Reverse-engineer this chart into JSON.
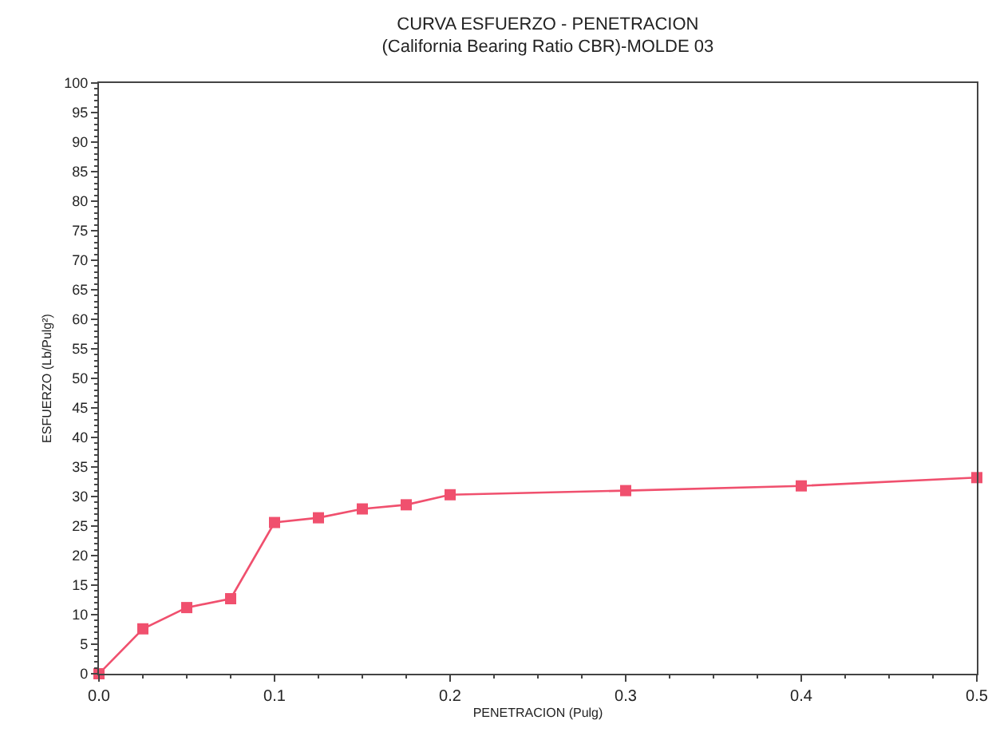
{
  "chart_data": {
    "type": "line",
    "title": "CURVA ESFUERZO - PENETRACION",
    "subtitle": "(California Bearing Ratio CBR)-MOLDE 03",
    "xlabel": "PENETRACION (Pulg)",
    "ylabel": "ESFUERZO (Lb/Pulg²)",
    "x": [
      0,
      0.025,
      0.05,
      0.075,
      0.1,
      0.125,
      0.15,
      0.175,
      0.2,
      0.3,
      0.4,
      0.5
    ],
    "series": [
      {
        "color": "#f0506e",
        "values": [
          0,
          7.6,
          11.2,
          12.7,
          25.6,
          26.4,
          27.9,
          28.6,
          30.3,
          31.0,
          31.8,
          33.2
        ]
      }
    ],
    "xlim": [
      0,
      0.5
    ],
    "xticks": [
      {
        "value": 0,
        "label": "0.0"
      },
      0.1,
      0.2,
      0.3,
      0.4,
      0.5
    ],
    "ylim": [
      0,
      100
    ],
    "yticks": [
      0,
      5,
      10,
      15,
      20,
      25,
      30,
      35,
      40,
      45,
      50,
      55,
      60,
      65,
      70,
      75,
      80,
      85,
      90,
      95,
      100
    ],
    "marker": "square",
    "line_style": "solid"
  }
}
